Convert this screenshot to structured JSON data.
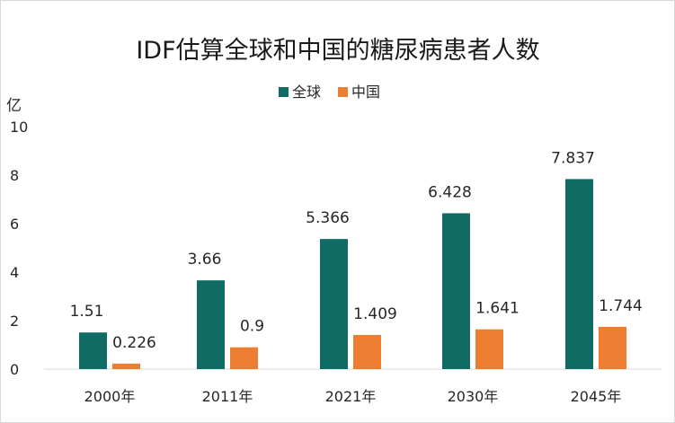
{
  "chart_data": {
    "type": "bar",
    "title": "IDF估算全球和中国的糖尿病患者人数",
    "ylabel": "亿",
    "ylim": [
      0,
      10
    ],
    "yticks": [
      0,
      2,
      4,
      6,
      8,
      10
    ],
    "categories": [
      "2000年",
      "2011年",
      "2021年",
      "2030年",
      "2045年"
    ],
    "legend_position": "top",
    "grid": false,
    "series": [
      {
        "name": "全球",
        "color": "#0f6b63",
        "values": [
          1.51,
          3.66,
          5.366,
          6.428,
          7.837
        ],
        "labels": [
          "1.51",
          "3.66",
          "5.366",
          "6.428",
          "7.837"
        ]
      },
      {
        "name": "中国",
        "color": "#ed7d31",
        "values": [
          0.226,
          0.9,
          1.409,
          1.641,
          1.744
        ],
        "labels": [
          "0.226",
          "0.9",
          "1.409",
          "1.641",
          "1.744"
        ]
      }
    ]
  }
}
